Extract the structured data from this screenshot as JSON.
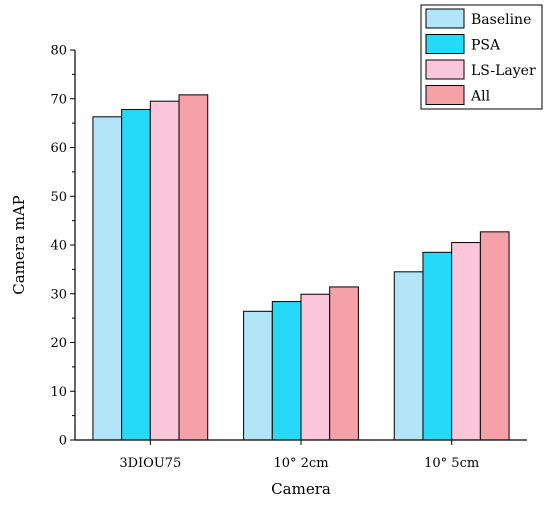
{
  "chart_data": {
    "type": "bar",
    "xlabel": "Camera",
    "ylabel": "Camera mAP",
    "ylim": [
      0,
      80
    ],
    "yticks": [
      0,
      10,
      20,
      30,
      40,
      50,
      60,
      70,
      80
    ],
    "categories": [
      "3DIOU75",
      "10° 2cm",
      "10° 5cm"
    ],
    "series": [
      {
        "name": "Baseline",
        "values": [
          66.3,
          26.4,
          34.5
        ],
        "color": "#b0e4f6"
      },
      {
        "name": "PSA",
        "values": [
          67.8,
          28.4,
          38.5
        ],
        "color": "#25d9f8"
      },
      {
        "name": "LS-Layer",
        "values": [
          69.5,
          29.9,
          40.5
        ],
        "color": "#fbc6da"
      },
      {
        "name": "All",
        "values": [
          70.8,
          31.4,
          42.7
        ],
        "color": "#f6a0a8"
      }
    ],
    "legend_position": "top-right",
    "grid": false
  }
}
